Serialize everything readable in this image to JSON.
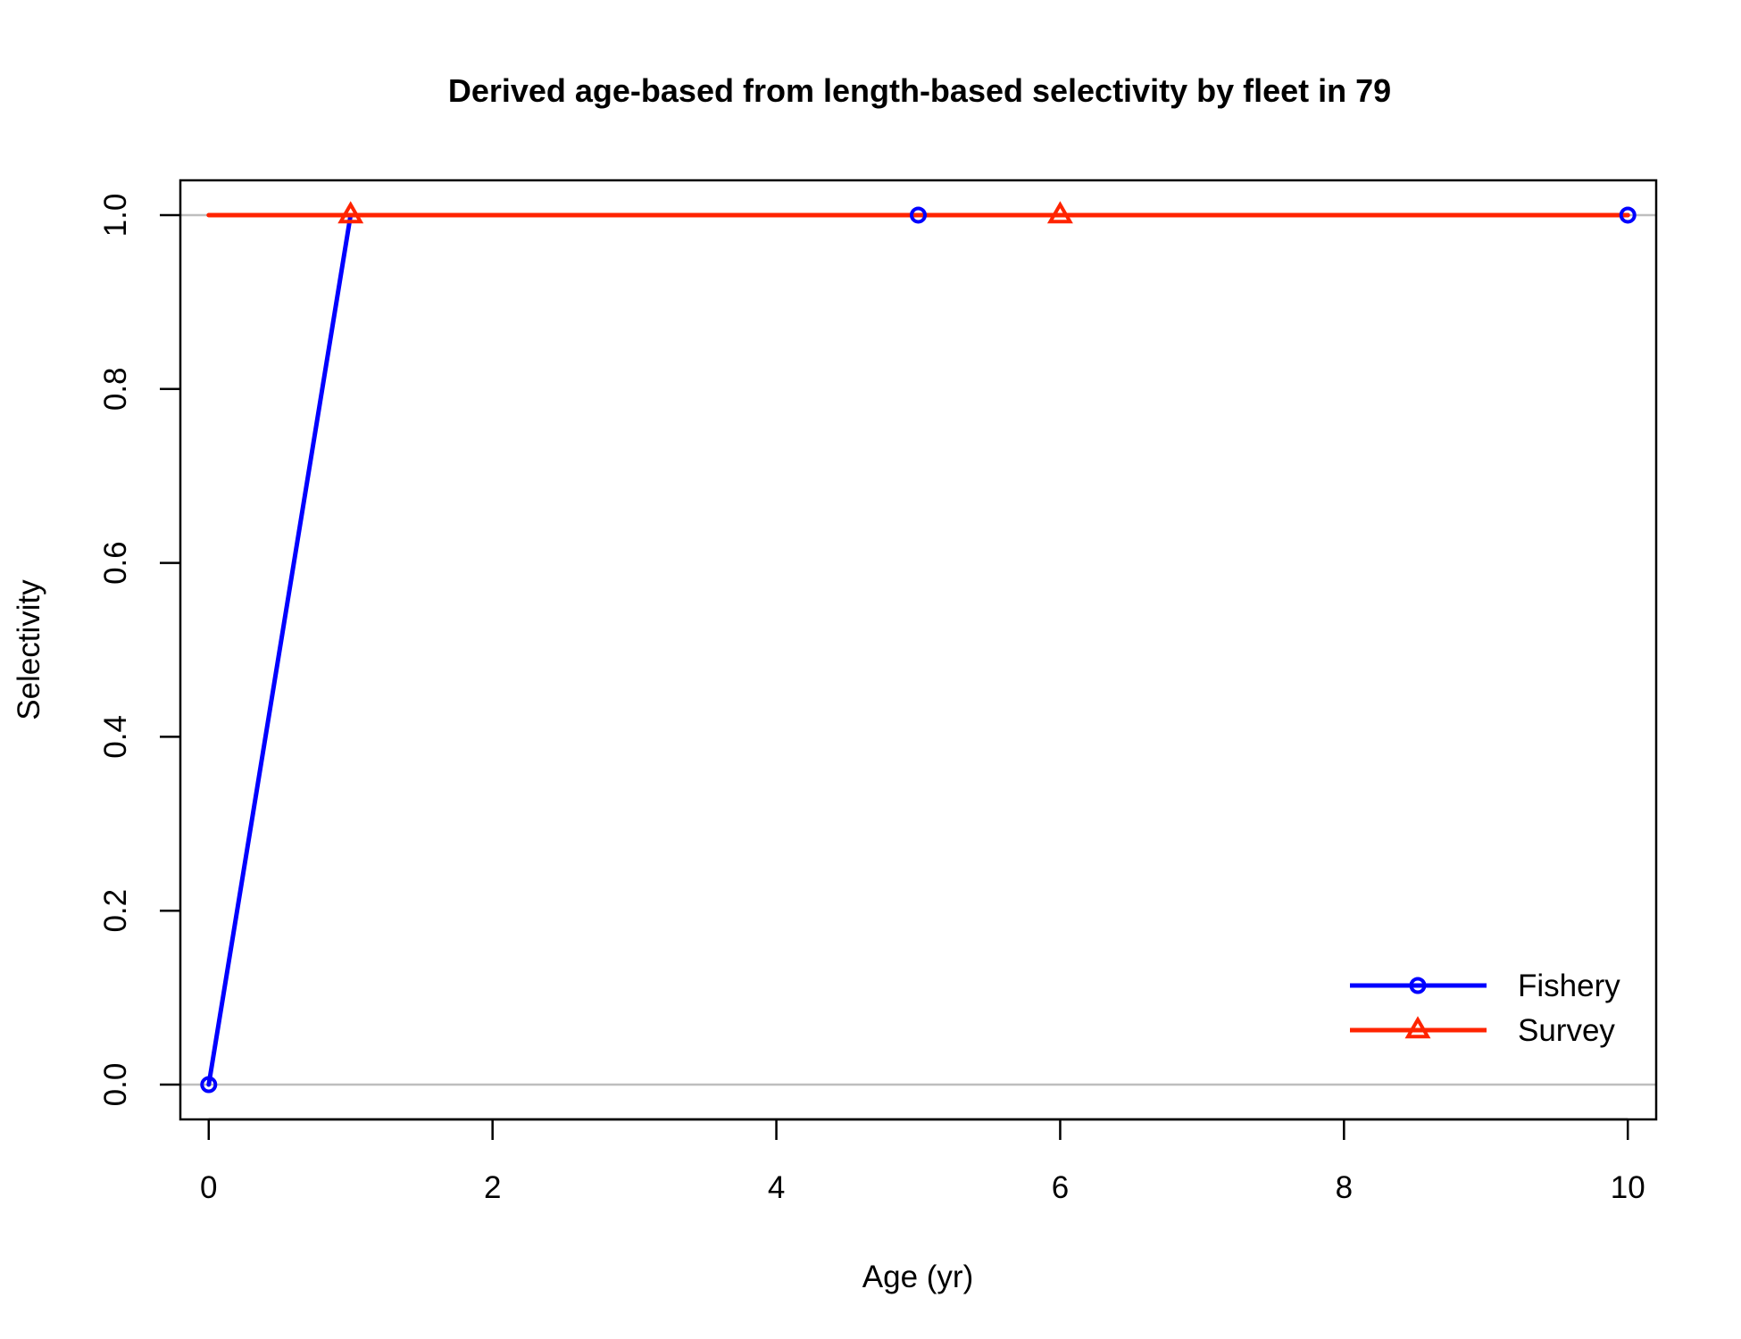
{
  "chart_data": {
    "type": "line",
    "title": "Derived age-based from length-based selectivity by fleet in 79",
    "xlabel": "Age (yr)",
    "ylabel": "Selectivity",
    "xlim": [
      -0.2,
      10.2
    ],
    "ylim": [
      -0.04,
      1.04
    ],
    "xticks": [
      0,
      2,
      4,
      6,
      8,
      10
    ],
    "xtick_labels": [
      "0",
      "2",
      "4",
      "6",
      "8",
      "10"
    ],
    "yticks": [
      0,
      0.2,
      0.4,
      0.6,
      0.8,
      1.0
    ],
    "ytick_labels": [
      "0.0",
      "0.2",
      "0.4",
      "0.6",
      "0.8",
      "1.0"
    ],
    "reference_lines": [
      0,
      1
    ],
    "reference_line_color": "#bebebe",
    "legend_position": "bottom-right",
    "series": [
      {
        "name": "Fishery",
        "color": "#0000ff",
        "marker": "circle",
        "x": [
          0,
          1,
          2,
          3,
          4,
          5,
          6,
          7,
          8,
          9,
          10
        ],
        "y": [
          0,
          1,
          1,
          1,
          1,
          1,
          1,
          1,
          1,
          1,
          1
        ],
        "marker_x": [
          0,
          5,
          10
        ]
      },
      {
        "name": "Survey",
        "color": "#ff2400",
        "marker": "triangle",
        "x": [
          0,
          1,
          2,
          3,
          4,
          5,
          6,
          7,
          8,
          9,
          10
        ],
        "y": [
          1,
          1,
          1,
          1,
          1,
          1,
          1,
          1,
          1,
          1,
          1
        ],
        "marker_x": [
          1,
          6
        ]
      }
    ]
  }
}
